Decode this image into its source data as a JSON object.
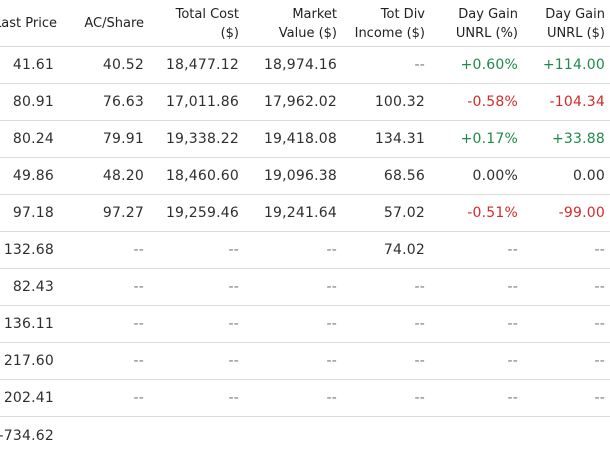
{
  "headers": [
    {
      "line1": "Last Price",
      "line2": ""
    },
    {
      "line1": "AC/Share",
      "line2": ""
    },
    {
      "line1": "Total Cost",
      "line2": "($)"
    },
    {
      "line1": "Market",
      "line2": "Value ($)"
    },
    {
      "line1": "Tot Div",
      "line2": "Income ($)"
    },
    {
      "line1": "Day Gain",
      "line2": "UNRL (%)"
    },
    {
      "line1": "Day Gain",
      "line2": "UNRL ($)"
    }
  ],
  "rows": [
    [
      "41.61",
      "40.52",
      "18,477.12",
      "18,974.16",
      "--",
      "+0.60%",
      "+114.00"
    ],
    [
      "80.91",
      "76.63",
      "17,011.86",
      "17,962.02",
      "100.32",
      "-0.58%",
      "-104.34"
    ],
    [
      "80.24",
      "79.91",
      "19,338.22",
      "19,418.08",
      "134.31",
      "+0.17%",
      "+33.88"
    ],
    [
      "49.86",
      "48.20",
      "18,460.60",
      "19,096.38",
      "68.56",
      "0.00%",
      "0.00"
    ],
    [
      "97.18",
      "97.27",
      "19,259.46",
      "19,241.64",
      "57.02",
      "-0.51%",
      "-99.00"
    ],
    [
      "132.68",
      "--",
      "--",
      "--",
      "74.02",
      "--",
      "--"
    ],
    [
      "82.43",
      "--",
      "--",
      "--",
      "--",
      "--",
      "--"
    ],
    [
      "136.11",
      "--",
      "--",
      "--",
      "--",
      "--",
      "--"
    ],
    [
      "217.60",
      "--",
      "--",
      "--",
      "--",
      "--",
      "--"
    ],
    [
      "202.41",
      "--",
      "--",
      "--",
      "--",
      "--",
      "--"
    ]
  ],
  "total_row": [
    "-734.62",
    "",
    "",
    "",
    "",
    "",
    ""
  ],
  "colors": {
    "positive": "#1e8a4a",
    "negative": "#d22b2b",
    "dash": "#7a7a7a",
    "text": "#2f2f2f"
  }
}
